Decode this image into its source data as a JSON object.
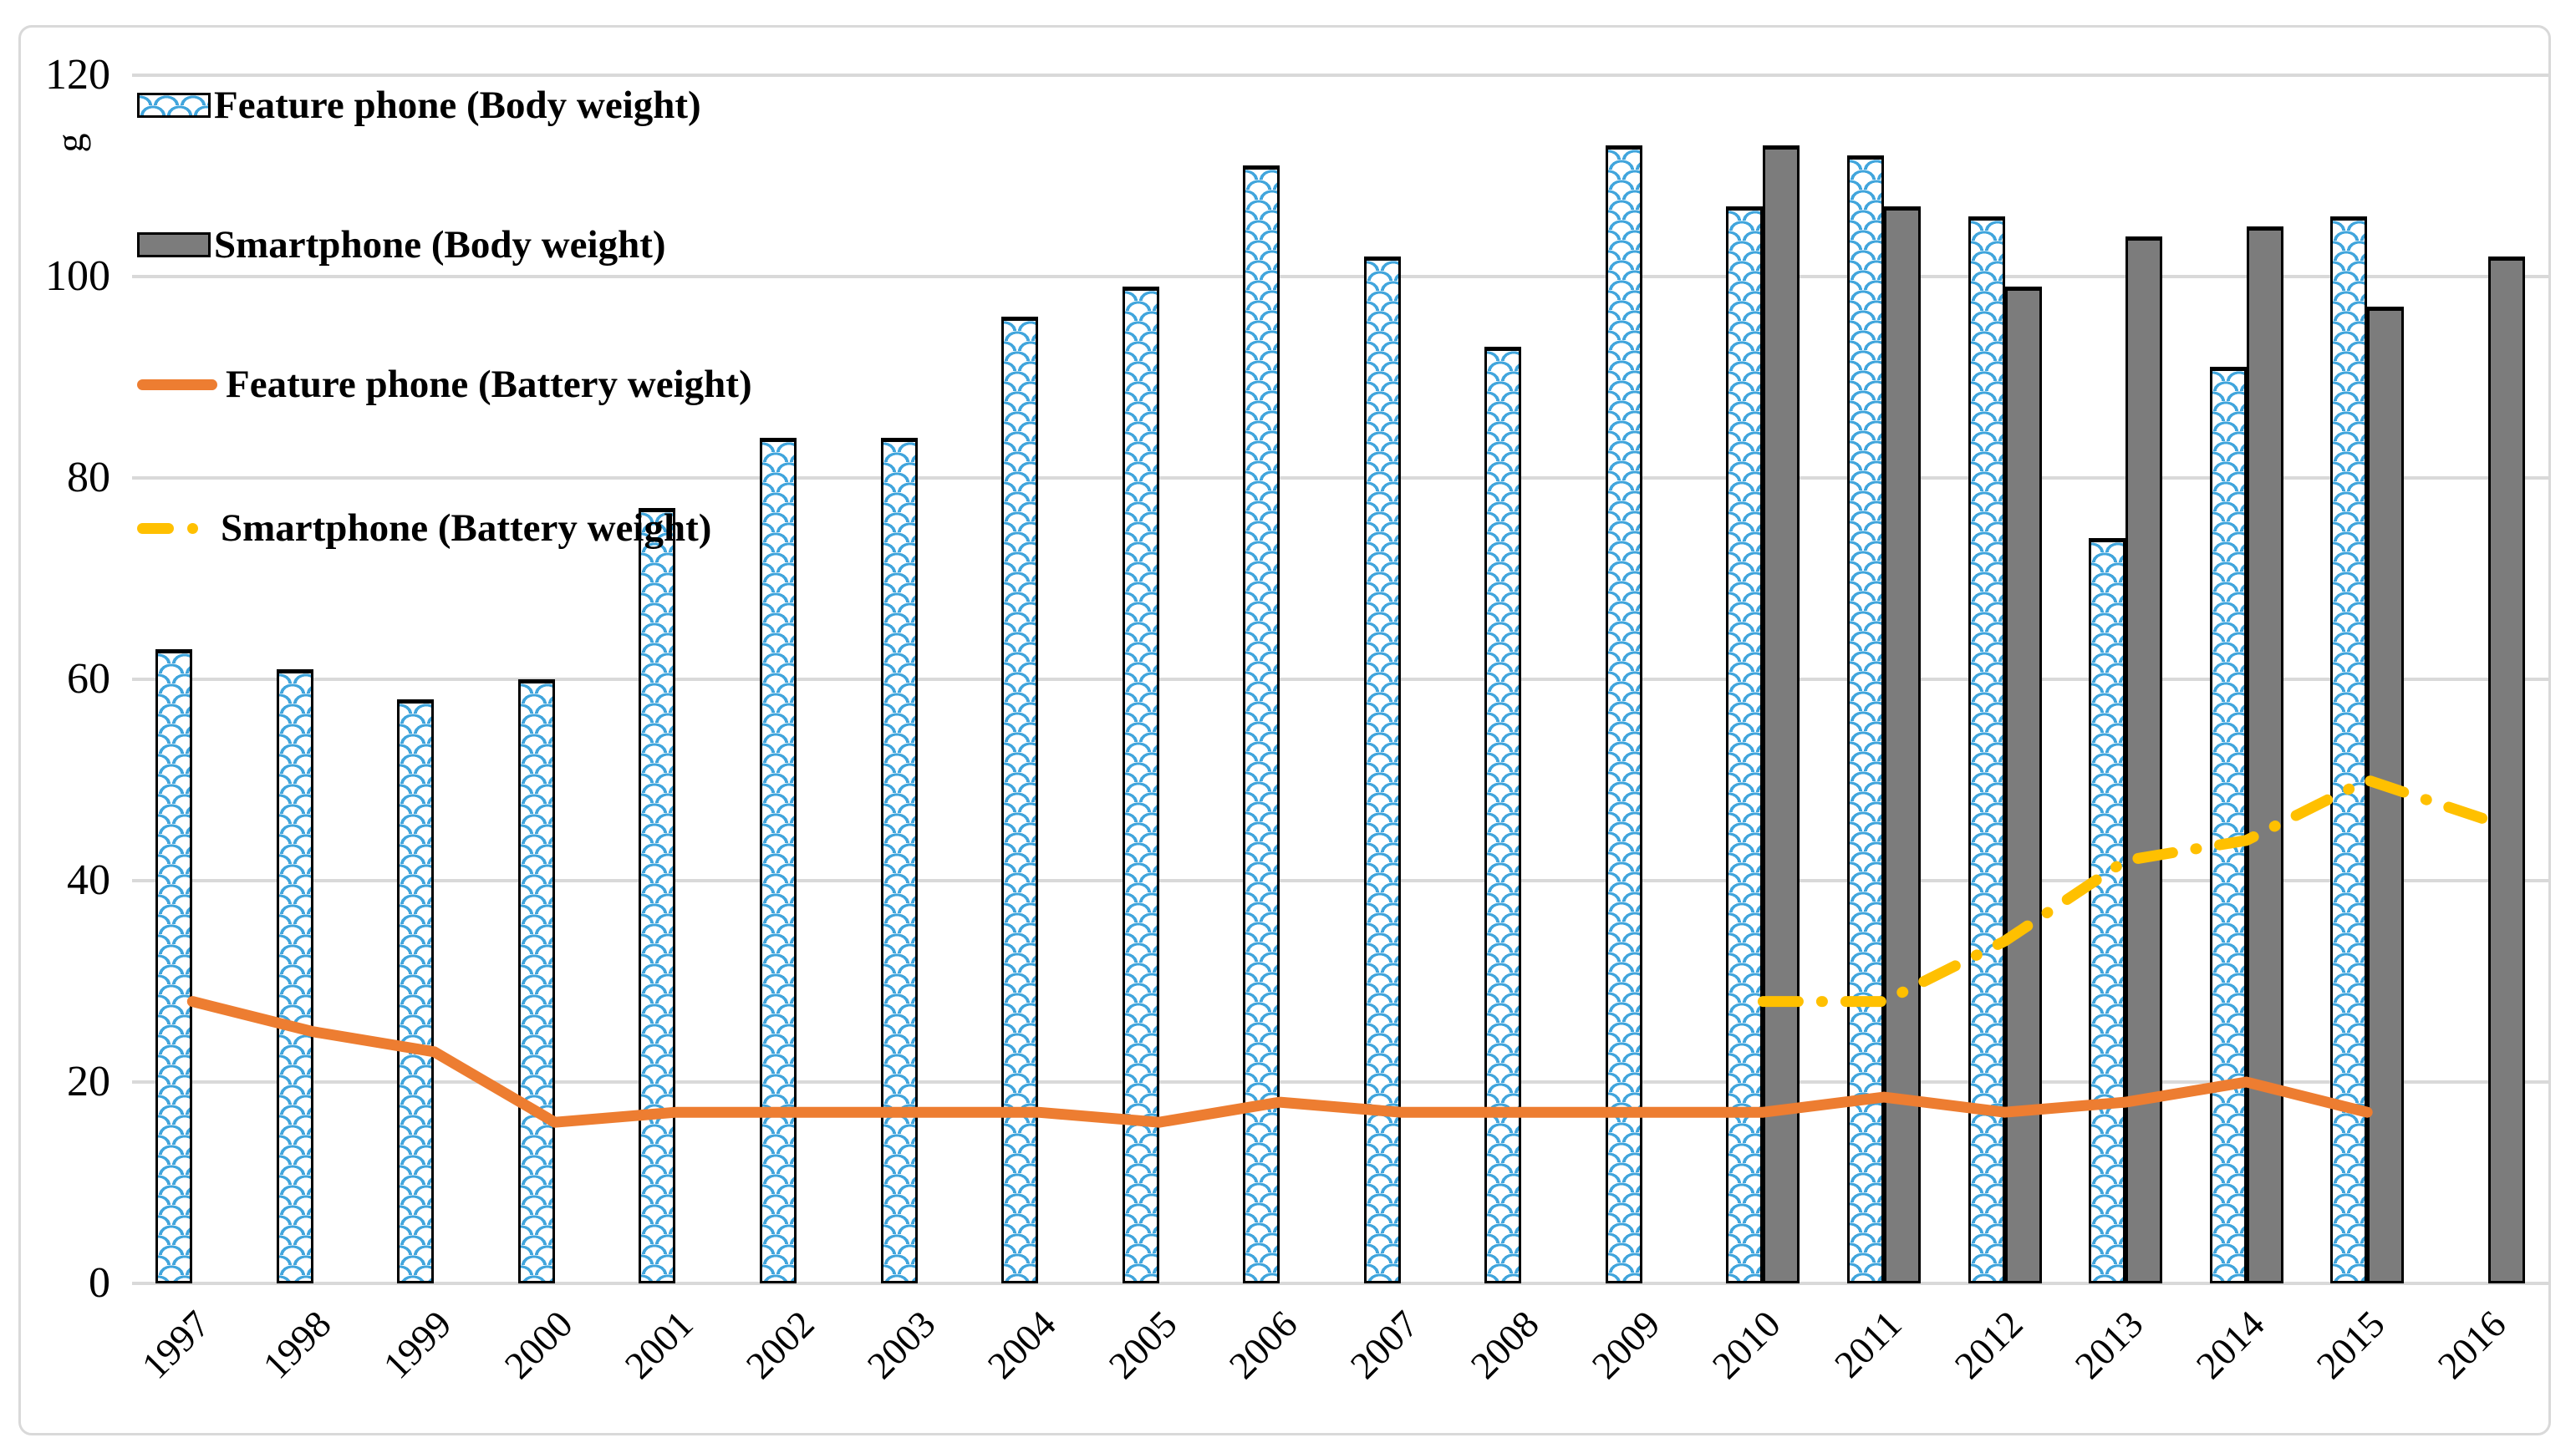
{
  "figure": {
    "unit": "g",
    "legend": [
      {
        "label": "Feature phone (Body weight)",
        "swatch": "hatched-bar"
      },
      {
        "label": "Smartphone (Body weight)",
        "swatch": "solid-gray-bar"
      },
      {
        "label": "Feature phone (Battery weight)",
        "swatch": "solid-orange-line"
      },
      {
        "label": "Smartphone (Battery weight)",
        "swatch": "dashdot-gold-line"
      }
    ],
    "colors": {
      "hatch_blue": "#41A5DC",
      "bar_gray": "#7C7C7C",
      "bar_border": "#000000",
      "line_orange": "#ED7D31",
      "line_gold": "#FFC000",
      "gridline": "#D9D9D9",
      "frame": "#D9D9D9",
      "text": "#000000"
    }
  },
  "chart_data": {
    "type": "bar",
    "combo": "bar+line",
    "title": "",
    "xlabel": "",
    "ylabel": "g",
    "ylim": [
      0,
      120
    ],
    "ytick_step": 20,
    "grid": true,
    "legend_position": "top-left-inside",
    "categories": [
      "1997",
      "1998",
      "1999",
      "2000",
      "2001",
      "2002",
      "2003",
      "2004",
      "2005",
      "2006",
      "2007",
      "2008",
      "2009",
      "2010",
      "2011",
      "2012",
      "2013",
      "2014",
      "2015",
      "2016"
    ],
    "series": [
      {
        "name": "Feature phone (Body weight)",
        "type": "bar",
        "style": "hatched",
        "values": [
          63,
          61,
          58,
          60,
          77,
          84,
          84,
          96,
          99,
          111,
          102,
          93,
          113,
          107,
          112,
          106,
          74,
          91,
          106,
          null
        ]
      },
      {
        "name": "Smartphone (Body weight)",
        "type": "bar",
        "style": "solid-gray",
        "values": [
          null,
          null,
          null,
          null,
          null,
          null,
          null,
          null,
          null,
          null,
          null,
          null,
          null,
          113,
          107,
          99,
          104,
          105,
          97,
          102
        ]
      },
      {
        "name": "Feature phone (Battery weight)",
        "type": "line",
        "style": "solid-orange",
        "values": [
          28,
          25,
          23,
          16,
          17,
          17,
          17,
          17,
          16,
          18,
          17,
          17,
          17,
          17,
          18.5,
          17,
          18,
          20,
          17,
          null
        ]
      },
      {
        "name": "Smartphone (Battery weight)",
        "type": "line",
        "style": "dashdot-gold",
        "values": [
          null,
          null,
          null,
          null,
          null,
          null,
          null,
          null,
          null,
          null,
          null,
          null,
          null,
          28,
          28,
          34,
          42,
          44,
          50,
          46
        ]
      }
    ]
  }
}
